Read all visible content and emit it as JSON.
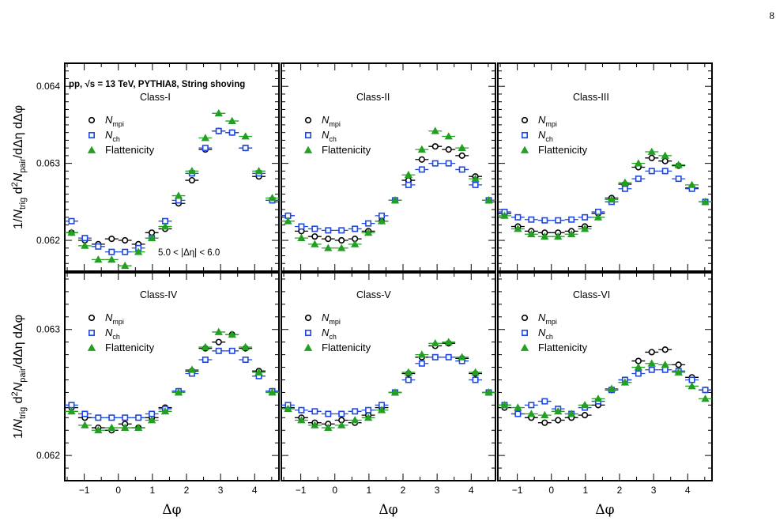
{
  "page_number": "8",
  "chart_data": {
    "type": "scatter",
    "title": "pp, √s = 13 TeV, PYTHIA8, String shoving",
    "annotation": "5.0 < |Δη| < 6.0",
    "xlabel": "Δφ",
    "ylabel": "1/N_trig d²N_pair/dΔη dΔφ",
    "xlim": [
      -1.5708,
      4.7124
    ],
    "x_ticks": [
      -1,
      0,
      1,
      2,
      3,
      4
    ],
    "x_tick_labels": [
      "−1",
      "0",
      "1",
      "2",
      "3",
      "4"
    ],
    "x": [
      -1.374,
      -0.982,
      -0.589,
      -0.196,
      0.196,
      0.589,
      0.982,
      1.374,
      1.767,
      2.16,
      2.553,
      2.945,
      3.338,
      3.731,
      4.123,
      4.516
    ],
    "x_err": 0.196,
    "legend_placement": "upper-left",
    "series_styles": [
      {
        "name": "N_mpi",
        "color": "#000000",
        "marker": "circle"
      },
      {
        "name": "N_ch",
        "color": "#1f48e0",
        "marker": "square"
      },
      {
        "name": "Flattenicity",
        "color": "#22a022",
        "marker": "triangle"
      }
    ],
    "rows": [
      {
        "ylim": [
          0.0616,
          0.0643
        ],
        "y_ticks": [
          0.062,
          0.063,
          0.064
        ],
        "y_tick_labels": [
          "0.062",
          "0.063",
          "0.064"
        ]
      },
      {
        "ylim": [
          0.0618,
          0.06345
        ],
        "y_ticks": [
          0.062,
          0.063
        ],
        "y_tick_labels": [
          "0.062",
          "0.063"
        ]
      }
    ],
    "panels": [
      {
        "label": "Class-I",
        "row": 0,
        "col": 0,
        "series": [
          {
            "name": "N_mpi",
            "values": [
              0.0621,
              0.062,
              0.06195,
              0.06202,
              0.062,
              0.06195,
              0.0621,
              0.06215,
              0.06248,
              0.06278,
              0.06318,
              0.06342,
              0.0634,
              0.0632,
              0.06283,
              0.06252
            ]
          },
          {
            "name": "N_ch",
            "values": [
              0.06225,
              0.06203,
              0.06192,
              0.06185,
              0.06185,
              0.0619,
              0.06203,
              0.06225,
              0.06252,
              0.06287,
              0.0632,
              0.06342,
              0.0634,
              0.0632,
              0.06287,
              0.06252
            ]
          },
          {
            "name": "Flattenicity",
            "values": [
              0.0621,
              0.06193,
              0.06175,
              0.06175,
              0.06167,
              0.06185,
              0.06203,
              0.06218,
              0.06258,
              0.0629,
              0.06333,
              0.06365,
              0.06355,
              0.06335,
              0.0629,
              0.06255
            ]
          }
        ]
      },
      {
        "label": "Class-II",
        "row": 0,
        "col": 1,
        "series": [
          {
            "name": "N_mpi",
            "values": [
              0.06232,
              0.06212,
              0.06205,
              0.06202,
              0.062,
              0.06202,
              0.06212,
              0.06225,
              0.06252,
              0.06278,
              0.06305,
              0.06322,
              0.06318,
              0.0631,
              0.06283,
              0.06252
            ]
          },
          {
            "name": "N_ch",
            "values": [
              0.06232,
              0.06218,
              0.06215,
              0.06213,
              0.06213,
              0.06215,
              0.06222,
              0.06232,
              0.06252,
              0.06272,
              0.06292,
              0.063,
              0.063,
              0.06292,
              0.06272,
              0.06252
            ]
          },
          {
            "name": "Flattenicity",
            "values": [
              0.06225,
              0.06203,
              0.06195,
              0.0619,
              0.0619,
              0.06195,
              0.0621,
              0.06225,
              0.06252,
              0.06285,
              0.06318,
              0.06342,
              0.06335,
              0.0632,
              0.0628,
              0.06252
            ]
          }
        ]
      },
      {
        "label": "Class-III",
        "row": 0,
        "col": 2,
        "series": [
          {
            "name": "N_mpi",
            "values": [
              0.06235,
              0.06218,
              0.06212,
              0.0621,
              0.0621,
              0.06212,
              0.06218,
              0.06235,
              0.06255,
              0.06273,
              0.06295,
              0.06307,
              0.06303,
              0.06297,
              0.06268,
              0.0625
            ]
          },
          {
            "name": "N_ch",
            "values": [
              0.06237,
              0.0623,
              0.06227,
              0.06226,
              0.06226,
              0.06227,
              0.0623,
              0.06237,
              0.0625,
              0.06267,
              0.0628,
              0.0629,
              0.0629,
              0.0628,
              0.06267,
              0.0625
            ]
          },
          {
            "name": "Flattenicity",
            "values": [
              0.06232,
              0.06215,
              0.06208,
              0.06205,
              0.06205,
              0.06208,
              0.06215,
              0.0623,
              0.06253,
              0.06275,
              0.063,
              0.06315,
              0.0631,
              0.06298,
              0.06272,
              0.0625
            ]
          }
        ]
      },
      {
        "label": "Class-IV",
        "row": 1,
        "col": 0,
        "series": [
          {
            "name": "N_mpi",
            "values": [
              0.06238,
              0.0623,
              0.06222,
              0.0622,
              0.06225,
              0.06222,
              0.0623,
              0.06238,
              0.06251,
              0.06267,
              0.06285,
              0.0629,
              0.06296,
              0.06285,
              0.06267,
              0.06251
            ]
          },
          {
            "name": "N_ch",
            "values": [
              0.0624,
              0.06233,
              0.0623,
              0.0623,
              0.0623,
              0.0623,
              0.06233,
              0.06237,
              0.06251,
              0.06265,
              0.06276,
              0.06283,
              0.06283,
              0.06276,
              0.06263,
              0.06251
            ]
          },
          {
            "name": "Flattenicity",
            "values": [
              0.06235,
              0.06224,
              0.0622,
              0.06222,
              0.06222,
              0.06222,
              0.06228,
              0.06235,
              0.0625,
              0.06268,
              0.06286,
              0.06298,
              0.06296,
              0.06286,
              0.06266,
              0.0625
            ]
          }
        ]
      },
      {
        "label": "Class-V",
        "row": 1,
        "col": 1,
        "series": [
          {
            "name": "N_mpi",
            "values": [
              0.06238,
              0.0623,
              0.06226,
              0.06225,
              0.06228,
              0.06226,
              0.06232,
              0.06238,
              0.0625,
              0.06265,
              0.06278,
              0.06287,
              0.06289,
              0.06277,
              0.06265,
              0.0625
            ]
          },
          {
            "name": "N_ch",
            "values": [
              0.0624,
              0.06236,
              0.06235,
              0.06233,
              0.06233,
              0.06235,
              0.06236,
              0.0624,
              0.0625,
              0.0626,
              0.06273,
              0.06278,
              0.06278,
              0.06275,
              0.0626,
              0.0625
            ]
          },
          {
            "name": "Flattenicity",
            "values": [
              0.06237,
              0.06228,
              0.06224,
              0.06222,
              0.06224,
              0.06228,
              0.0623,
              0.06236,
              0.0625,
              0.06266,
              0.0628,
              0.06289,
              0.0629,
              0.06278,
              0.06266,
              0.0625
            ]
          }
        ]
      },
      {
        "label": "Class-VI",
        "row": 1,
        "col": 2,
        "series": [
          {
            "name": "N_mpi",
            "values": [
              0.06238,
              0.06233,
              0.0623,
              0.06226,
              0.06228,
              0.0623,
              0.06232,
              0.0624,
              0.06252,
              0.0626,
              0.06275,
              0.06282,
              0.06284,
              0.06272,
              0.06262,
              0.06252
            ]
          },
          {
            "name": "N_ch",
            "values": [
              0.0624,
              0.06233,
              0.0624,
              0.06243,
              0.06237,
              0.06233,
              0.06238,
              0.06243,
              0.06252,
              0.0626,
              0.06265,
              0.06268,
              0.06268,
              0.06267,
              0.0626,
              0.06252
            ]
          },
          {
            "name": "Flattenicity",
            "values": [
              0.0624,
              0.06238,
              0.06233,
              0.06232,
              0.06235,
              0.06233,
              0.0624,
              0.06245,
              0.06253,
              0.06258,
              0.0627,
              0.06273,
              0.06272,
              0.06266,
              0.06255,
              0.06245
            ]
          }
        ]
      }
    ]
  }
}
